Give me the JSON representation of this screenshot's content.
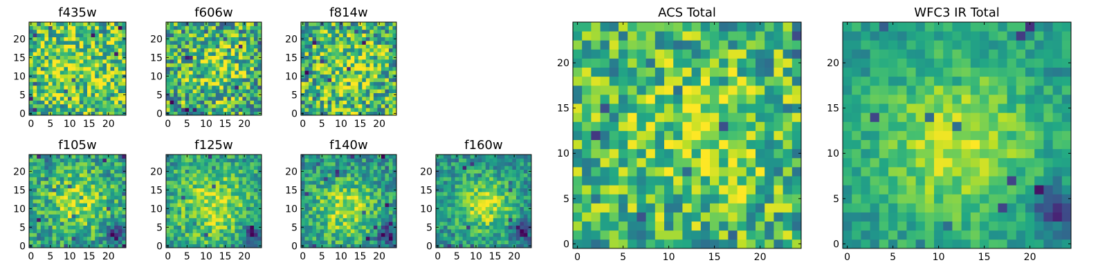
{
  "chart_data": [
    {
      "id": "f435w",
      "type": "heatmap",
      "title": "f435w",
      "nx": 25,
      "ny": 25,
      "xlim": [
        -0.5,
        24.5
      ],
      "ylim": [
        -0.5,
        24.5
      ],
      "xticks": [
        0,
        5,
        10,
        15,
        20
      ],
      "yticks": [
        0,
        5,
        10,
        15,
        20
      ],
      "colormap": "viridis",
      "center": [
        12,
        12
      ],
      "sigma": 8,
      "peak": 0.15,
      "base": 0.66,
      "noise": 0.34,
      "seed": 11
    },
    {
      "id": "f606w",
      "type": "heatmap",
      "title": "f606w",
      "nx": 25,
      "ny": 25,
      "xlim": [
        -0.5,
        24.5
      ],
      "ylim": [
        -0.5,
        24.5
      ],
      "xticks": [
        0,
        5,
        10,
        15,
        20
      ],
      "yticks": [
        0,
        5,
        10,
        15,
        20
      ],
      "colormap": "viridis",
      "center": [
        13,
        12
      ],
      "sigma": 5,
      "peak": 0.22,
      "base": 0.62,
      "noise": 0.36,
      "seed": 23
    },
    {
      "id": "f814w",
      "type": "heatmap",
      "title": "f814w",
      "nx": 25,
      "ny": 25,
      "xlim": [
        -0.5,
        24.5
      ],
      "ylim": [
        -0.5,
        24.5
      ],
      "xticks": [
        0,
        5,
        10,
        15,
        20
      ],
      "yticks": [
        0,
        5,
        10,
        15,
        20
      ],
      "colormap": "viridis",
      "center": [
        12,
        12
      ],
      "sigma": 6,
      "peak": 0.18,
      "base": 0.63,
      "noise": 0.35,
      "seed": 37
    },
    {
      "id": "f105w",
      "type": "heatmap",
      "title": "f105w",
      "nx": 25,
      "ny": 25,
      "xlim": [
        -0.5,
        24.5
      ],
      "ylim": [
        -0.5,
        24.5
      ],
      "xticks": [
        0,
        5,
        10,
        15,
        20
      ],
      "yticks": [
        0,
        5,
        10,
        15,
        20
      ],
      "colormap": "viridis",
      "center": [
        12,
        12
      ],
      "sigma": 6,
      "peak": 0.3,
      "base": 0.55,
      "noise": 0.24,
      "seed": 41,
      "dark_corner": [
        22,
        3
      ]
    },
    {
      "id": "f125w",
      "type": "heatmap",
      "title": "f125w",
      "nx": 25,
      "ny": 25,
      "xlim": [
        -0.5,
        24.5
      ],
      "ylim": [
        -0.5,
        24.5
      ],
      "xticks": [
        0,
        5,
        10,
        15,
        20
      ],
      "yticks": [
        0,
        5,
        10,
        15,
        20
      ],
      "colormap": "viridis",
      "center": [
        12,
        11
      ],
      "sigma": 7,
      "peak": 0.33,
      "base": 0.55,
      "noise": 0.22,
      "seed": 53,
      "dark_corner": [
        22,
        3
      ]
    },
    {
      "id": "f140w",
      "type": "heatmap",
      "title": "f140w",
      "nx": 25,
      "ny": 25,
      "xlim": [
        -0.5,
        24.5
      ],
      "ylim": [
        -0.5,
        24.5
      ],
      "xticks": [
        0,
        5,
        10,
        15,
        20
      ],
      "yticks": [
        0,
        5,
        10,
        15,
        20
      ],
      "colormap": "viridis",
      "center": [
        11,
        10
      ],
      "sigma": 6,
      "peak": 0.35,
      "base": 0.52,
      "noise": 0.22,
      "seed": 67,
      "dark_corner": [
        22,
        3
      ]
    },
    {
      "id": "f160w",
      "type": "heatmap",
      "title": "f160w",
      "nx": 25,
      "ny": 25,
      "xlim": [
        -0.5,
        24.5
      ],
      "ylim": [
        -0.5,
        24.5
      ],
      "xticks": [
        0,
        5,
        10,
        15,
        20
      ],
      "yticks": [
        0,
        5,
        10,
        15,
        20
      ],
      "colormap": "viridis",
      "center": [
        12,
        11
      ],
      "sigma": 5,
      "peak": 0.38,
      "base": 0.52,
      "noise": 0.2,
      "seed": 79,
      "dark_corner": [
        22,
        4
      ]
    },
    {
      "id": "acs-total",
      "type": "heatmap",
      "title": "ACS Total",
      "nx": 25,
      "ny": 25,
      "xlim": [
        -0.5,
        24.5
      ],
      "ylim": [
        -0.5,
        24.5
      ],
      "xticks": [
        0,
        5,
        10,
        15,
        20
      ],
      "yticks": [
        0,
        5,
        10,
        15,
        20
      ],
      "colormap": "viridis",
      "center": [
        14,
        12
      ],
      "sigma": 5,
      "peak": 0.22,
      "base": 0.65,
      "noise": 0.3,
      "seed": 97
    },
    {
      "id": "wfc3-ir-total",
      "type": "heatmap",
      "title": "WFC3 IR Total",
      "nx": 25,
      "ny": 25,
      "xlim": [
        -0.5,
        24.5
      ],
      "ylim": [
        -0.5,
        24.5
      ],
      "xticks": [
        0,
        5,
        10,
        15,
        20
      ],
      "yticks": [
        0,
        5,
        10,
        15,
        20
      ],
      "colormap": "viridis",
      "center": [
        12,
        11
      ],
      "sigma": 6,
      "peak": 0.35,
      "base": 0.55,
      "noise": 0.14,
      "seed": 113,
      "dark_corner": [
        23,
        4
      ]
    }
  ]
}
